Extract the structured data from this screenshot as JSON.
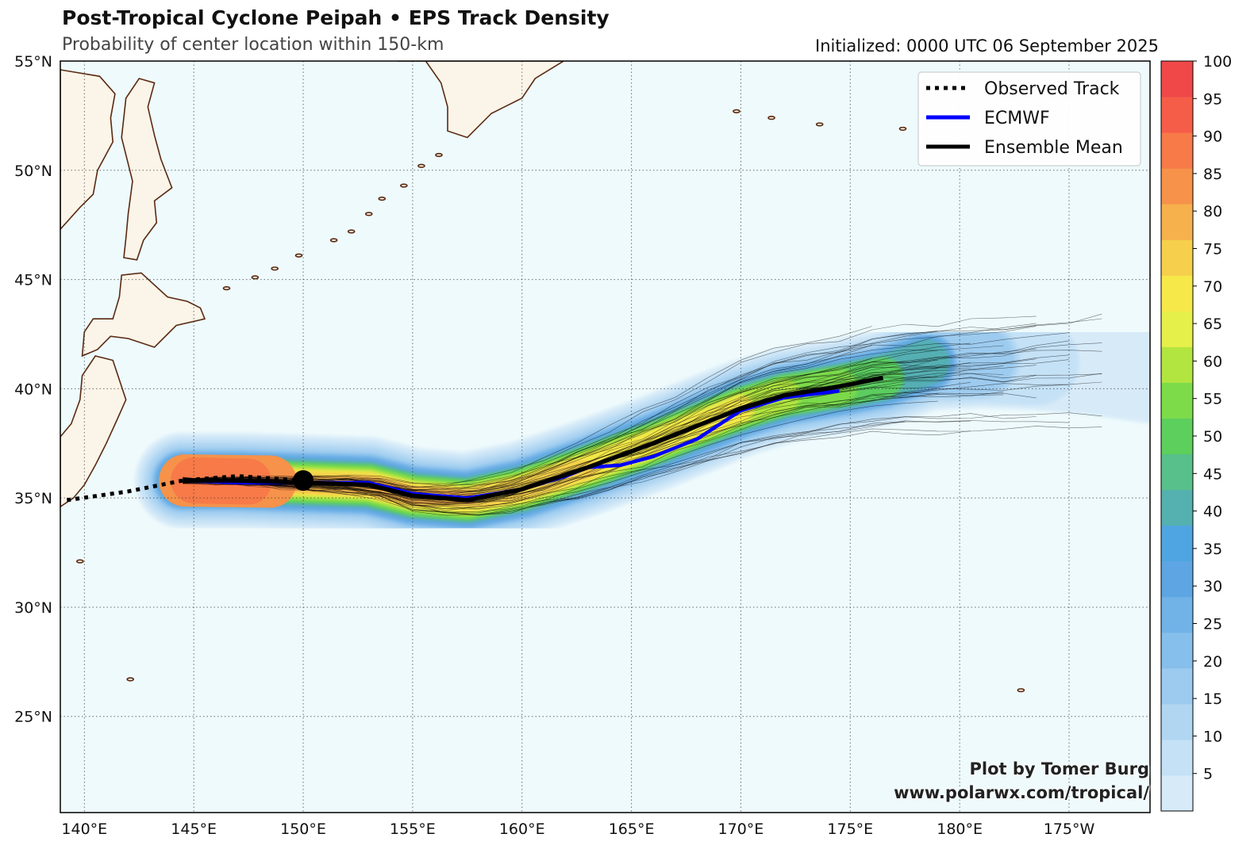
{
  "header": {
    "title": "Post-Tropical Cyclone Peipah • EPS Track Density",
    "subtitle": "Probability of center location within 150-km",
    "initialized": "Initialized: 0000 UTC 06 September 2025"
  },
  "map": {
    "lon_range": [
      138.9,
      188.7
    ],
    "lat_range": [
      20.6,
      55
    ],
    "lon_ticks": [
      {
        "lon": 140,
        "label": "140°E"
      },
      {
        "lon": 145,
        "label": "145°E"
      },
      {
        "lon": 150,
        "label": "150°E"
      },
      {
        "lon": 155,
        "label": "155°E"
      },
      {
        "lon": 160,
        "label": "160°E"
      },
      {
        "lon": 165,
        "label": "165°E"
      },
      {
        "lon": 170,
        "label": "170°E"
      },
      {
        "lon": 175,
        "label": "175°E"
      },
      {
        "lon": 180,
        "label": "180°E"
      },
      {
        "lon": 185,
        "label": "175°W"
      }
    ],
    "lat_ticks": [
      {
        "lat": 55,
        "label": "55°N"
      },
      {
        "lat": 50,
        "label": "50°N"
      },
      {
        "lat": 45,
        "label": "45°N"
      },
      {
        "lat": 40,
        "label": "40°N"
      },
      {
        "lat": 35,
        "label": "35°N"
      },
      {
        "lat": 30,
        "label": "30°N"
      },
      {
        "lat": 25,
        "label": "25°N"
      }
    ],
    "gridlines": "dotted",
    "ocean_color": "#eefafc",
    "land_color": "#fbf4e8",
    "coast_color": "#5a2a12"
  },
  "legend": {
    "position": "top-right",
    "entries": [
      {
        "label": "Observed Track",
        "style": "dotted",
        "color": "#000000"
      },
      {
        "label": "ECMWF",
        "style": "solid",
        "color": "#0000ff"
      },
      {
        "label": "Ensemble Mean",
        "style": "solid",
        "color": "#000000"
      }
    ]
  },
  "colorbar": {
    "range": [
      0,
      100
    ],
    "step": 5,
    "labels": [
      "5",
      "10",
      "15",
      "20",
      "25",
      "30",
      "35",
      "40",
      "45",
      "50",
      "55",
      "60",
      "65",
      "70",
      "75",
      "80",
      "85",
      "90",
      "95",
      "100"
    ],
    "colors": [
      "#d6eaf8",
      "#c4e1f6",
      "#b0d6f2",
      "#9ccbef",
      "#86bfeb",
      "#71b2e7",
      "#5ea6e3",
      "#4fa5e2",
      "#55b0b0",
      "#58c08a",
      "#5ccf5c",
      "#7ddb4a",
      "#b3e540",
      "#e6f04a",
      "#f7e84a",
      "#f6cf4c",
      "#f6b04c",
      "#f6924a",
      "#f77a48",
      "#f65d48",
      "#f04848"
    ]
  },
  "tracks": {
    "observed": [
      [
        139.2,
        34.9
      ],
      [
        142,
        35.3
      ],
      [
        144.5,
        35.8
      ],
      [
        147,
        36.0
      ],
      [
        150,
        35.8
      ]
    ],
    "current_position": [
      150,
      35.8
    ],
    "ecmwf": [
      [
        144.5,
        35.8
      ],
      [
        147,
        35.7
      ],
      [
        150,
        35.7
      ],
      [
        153,
        35.7
      ],
      [
        155,
        35.2
      ],
      [
        157.5,
        35.0
      ],
      [
        160,
        35.4
      ],
      [
        162,
        36.0
      ],
      [
        163,
        36.4
      ],
      [
        164.5,
        36.5
      ],
      [
        166,
        36.9
      ],
      [
        168,
        37.7
      ],
      [
        170,
        39.0
      ],
      [
        172,
        39.6
      ],
      [
        174.5,
        39.9
      ]
    ],
    "ensemble_mean": [
      [
        144.5,
        35.8
      ],
      [
        147,
        35.8
      ],
      [
        150,
        35.7
      ],
      [
        153,
        35.6
      ],
      [
        155,
        35.1
      ],
      [
        157.5,
        34.9
      ],
      [
        160,
        35.4
      ],
      [
        163,
        36.4
      ],
      [
        166,
        37.5
      ],
      [
        168,
        38.3
      ],
      [
        170,
        39.1
      ],
      [
        172,
        39.7
      ],
      [
        174.5,
        40.1
      ],
      [
        176.5,
        40.5
      ]
    ]
  },
  "credit": {
    "line1": "Plot by Tomer Burg",
    "line2": "www.polarwx.com/tropical/"
  }
}
